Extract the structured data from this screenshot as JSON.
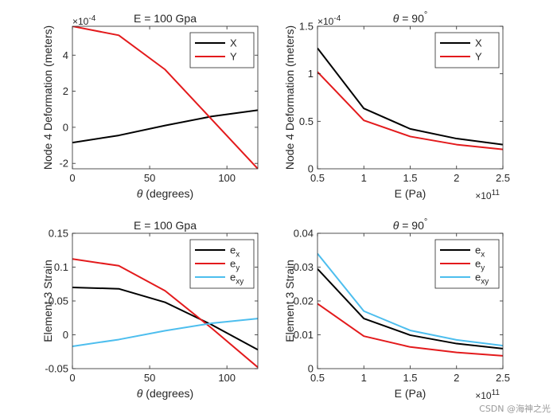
{
  "watermark": "CSDN @海神之光",
  "chart_data": [
    {
      "type": "line",
      "title": "E = 100 Gpa",
      "xlabel": "θ (degrees)",
      "ylabel": "Node 4 Deformation (meters)",
      "exponent": "×10",
      "exponent_power": "-4",
      "xlim": [
        0,
        120
      ],
      "ylim": [
        -2.3,
        5.6
      ],
      "xticks": [
        0,
        50,
        100
      ],
      "xtick_labels": [
        "0",
        "50",
        "100"
      ],
      "yticks": [
        -2,
        0,
        2,
        4
      ],
      "ytick_labels": [
        "-2",
        "0",
        "2",
        "4"
      ],
      "x": [
        0,
        30,
        60,
        90,
        120
      ],
      "series": [
        {
          "name": "X",
          "color": "#000000",
          "values": [
            -0.85,
            -0.45,
            0.1,
            0.6,
            0.95
          ]
        },
        {
          "name": "Y",
          "color": "#e31a1c",
          "values": [
            5.6,
            5.1,
            3.2,
            0.45,
            -2.3
          ]
        }
      ],
      "legend": [
        {
          "label": "X",
          "sub": "",
          "color": "#000000"
        },
        {
          "label": "Y",
          "sub": "",
          "color": "#e31a1c"
        }
      ],
      "legend_position": "top-right"
    },
    {
      "type": "line",
      "title_prefix": "θ",
      "title": " = 90",
      "title_degree": "°",
      "xlabel": "E (Pa)",
      "ylabel": "Node 4 Deformation (meters)",
      "exponent": "×10",
      "exponent_power": "-4",
      "x_exponent": "×10",
      "x_exponent_power": "11",
      "xlim": [
        0.5,
        2.5
      ],
      "ylim": [
        0,
        1.5
      ],
      "xticks": [
        0.5,
        1,
        1.5,
        2,
        2.5
      ],
      "xtick_labels": [
        "0.5",
        "1",
        "1.5",
        "2",
        "2.5"
      ],
      "yticks": [
        0,
        0.5,
        1,
        1.5
      ],
      "ytick_labels": [
        "0",
        "0.5",
        "1",
        "1.5"
      ],
      "x": [
        0.5,
        1,
        1.5,
        2,
        2.5
      ],
      "series": [
        {
          "name": "X",
          "color": "#000000",
          "values": [
            1.27,
            0.635,
            0.42,
            0.318,
            0.254
          ]
        },
        {
          "name": "Y",
          "color": "#e31a1c",
          "values": [
            1.02,
            0.51,
            0.34,
            0.255,
            0.204
          ]
        }
      ],
      "legend": [
        {
          "label": "X",
          "sub": "",
          "color": "#000000"
        },
        {
          "label": "Y",
          "sub": "",
          "color": "#e31a1c"
        }
      ],
      "legend_position": "top-right"
    },
    {
      "type": "line",
      "title": "E = 100 Gpa",
      "xlabel": "θ (degrees)",
      "ylabel": "Element 3 Strain",
      "xlim": [
        0,
        120
      ],
      "ylim": [
        -0.05,
        0.15
      ],
      "xticks": [
        0,
        50,
        100
      ],
      "xtick_labels": [
        "0",
        "50",
        "100"
      ],
      "yticks": [
        -0.05,
        0,
        0.05,
        0.1,
        0.15
      ],
      "ytick_labels": [
        "-0.05",
        "0",
        "0.05",
        "0.1",
        "0.15"
      ],
      "x": [
        0,
        30,
        60,
        90,
        120
      ],
      "series": [
        {
          "name": "ex",
          "color": "#000000",
          "values": [
            0.07,
            0.068,
            0.048,
            0.015,
            -0.022
          ]
        },
        {
          "name": "ey",
          "color": "#e31a1c",
          "values": [
            0.112,
            0.102,
            0.065,
            0.01,
            -0.048
          ]
        },
        {
          "name": "exy",
          "color": "#4dbeee",
          "values": [
            -0.017,
            -0.007,
            0.006,
            0.017,
            0.024
          ]
        }
      ],
      "legend": [
        {
          "label": "e",
          "sub": "x",
          "color": "#000000"
        },
        {
          "label": "e",
          "sub": "y",
          "color": "#e31a1c"
        },
        {
          "label": "e",
          "sub": "xy",
          "color": "#4dbeee"
        }
      ],
      "legend_position": "top-right"
    },
    {
      "type": "line",
      "title_prefix": "θ",
      "title": " = 90",
      "title_degree": "°",
      "xlabel": "E (Pa)",
      "ylabel": "Element 3 Strain",
      "x_exponent": "×10",
      "x_exponent_power": "11",
      "xlim": [
        0.5,
        2.5
      ],
      "ylim": [
        0,
        0.04
      ],
      "xticks": [
        0.5,
        1,
        1.5,
        2,
        2.5
      ],
      "xtick_labels": [
        "0.5",
        "1",
        "1.5",
        "2",
        "2.5"
      ],
      "yticks": [
        0,
        0.01,
        0.02,
        0.03,
        0.04
      ],
      "ytick_labels": [
        "0",
        "0.01",
        "0.02",
        "0.03",
        "0.04"
      ],
      "x": [
        0.5,
        1,
        1.5,
        2,
        2.5
      ],
      "series": [
        {
          "name": "ex",
          "color": "#000000",
          "values": [
            0.0295,
            0.0148,
            0.0099,
            0.0074,
            0.0059
          ]
        },
        {
          "name": "ey",
          "color": "#e31a1c",
          "values": [
            0.0192,
            0.0096,
            0.0064,
            0.0048,
            0.0038
          ]
        },
        {
          "name": "exy",
          "color": "#4dbeee",
          "values": [
            0.034,
            0.017,
            0.0113,
            0.0085,
            0.0068
          ]
        }
      ],
      "legend": [
        {
          "label": "e",
          "sub": "x",
          "color": "#000000"
        },
        {
          "label": "e",
          "sub": "y",
          "color": "#e31a1c"
        },
        {
          "label": "e",
          "sub": "xy",
          "color": "#4dbeee"
        }
      ],
      "legend_position": "top-right"
    }
  ]
}
